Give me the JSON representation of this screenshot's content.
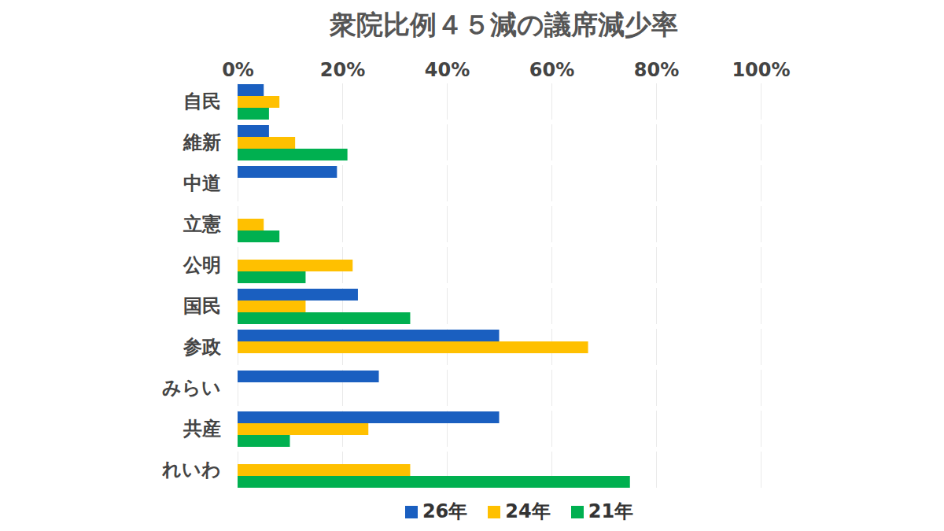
{
  "chart_data": {
    "type": "bar",
    "title": "衆院比例４５減の議席減少率",
    "orientation": "horizontal",
    "categories": [
      "自民",
      "維新",
      "中道",
      "立憲",
      "公明",
      "国民",
      "参政",
      "みらい",
      "共産",
      "れいわ"
    ],
    "series": [
      {
        "name": "26年",
        "color": "#1a5fc0",
        "values": [
          5,
          6,
          19,
          null,
          null,
          23,
          50,
          27,
          50,
          null
        ]
      },
      {
        "name": "24年",
        "color": "#ffc000",
        "values": [
          8,
          11,
          null,
          5,
          22,
          13,
          67,
          null,
          25,
          33
        ]
      },
      {
        "name": "21年",
        "color": "#00b050",
        "values": [
          6,
          21,
          null,
          8,
          13,
          33,
          null,
          null,
          10,
          75
        ]
      }
    ],
    "xlim": [
      0,
      100
    ],
    "xticks": [
      {
        "value": 0,
        "label": "0%"
      },
      {
        "value": 20,
        "label": "20%"
      },
      {
        "value": 40,
        "label": "40%"
      },
      {
        "value": 60,
        "label": "60%"
      },
      {
        "value": 80,
        "label": "80%"
      },
      {
        "value": 100,
        "label": "100%"
      }
    ],
    "grid": true,
    "legend": "bottom"
  }
}
